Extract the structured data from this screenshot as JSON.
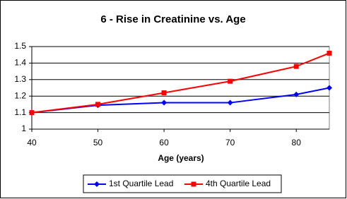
{
  "chart_data": {
    "type": "line",
    "title": "6 - Rise in Creatinine vs. Age",
    "x_label": "Age (years)",
    "x": [
      40,
      50,
      60,
      70,
      80,
      85
    ],
    "series": [
      {
        "name": "1st Quartile Lead",
        "color": "#0000ff",
        "marker": "diamond",
        "values": [
          1.1,
          1.145,
          1.16,
          1.16,
          1.21,
          1.25
        ]
      },
      {
        "name": "4th Quartile Lead",
        "color": "#ff0000",
        "marker": "square",
        "values": [
          1.1,
          1.15,
          1.22,
          1.29,
          1.38,
          1.46
        ]
      }
    ],
    "xlim": [
      40,
      85
    ],
    "xticks": [
      40,
      50,
      60,
      70,
      80
    ],
    "ylim": [
      1,
      1.5
    ],
    "yticks": [
      1,
      1.1,
      1.2,
      1.3,
      1.4,
      1.5
    ],
    "grid": true,
    "legend": "bottom"
  }
}
